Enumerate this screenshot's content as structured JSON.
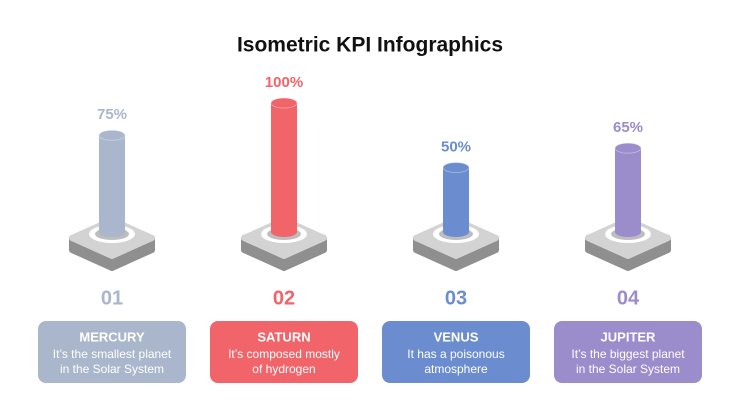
{
  "chart_data": {
    "type": "bar",
    "title": "Isometric KPI Infographics",
    "categories": [
      "MERCURY",
      "SATURN",
      "VENUS",
      "JUPITER"
    ],
    "values": [
      75,
      100,
      50,
      65
    ],
    "value_labels": [
      "75%",
      "100%",
      "50%",
      "65%"
    ],
    "colors": [
      "#a9b6cc",
      "#f0646a",
      "#6b8dd0",
      "#9b8ccc"
    ],
    "numbers": [
      "01",
      "02",
      "03",
      "04"
    ],
    "descriptions": [
      [
        "It’s the smallest planet",
        "in the Solar System"
      ],
      [
        "It’s composed mostly",
        "of hydrogen"
      ],
      [
        "It  has a poisonous",
        "atmosphere"
      ],
      [
        "It’s the biggest planet",
        "in the Solar System"
      ]
    ],
    "ylim": [
      0,
      100
    ]
  }
}
